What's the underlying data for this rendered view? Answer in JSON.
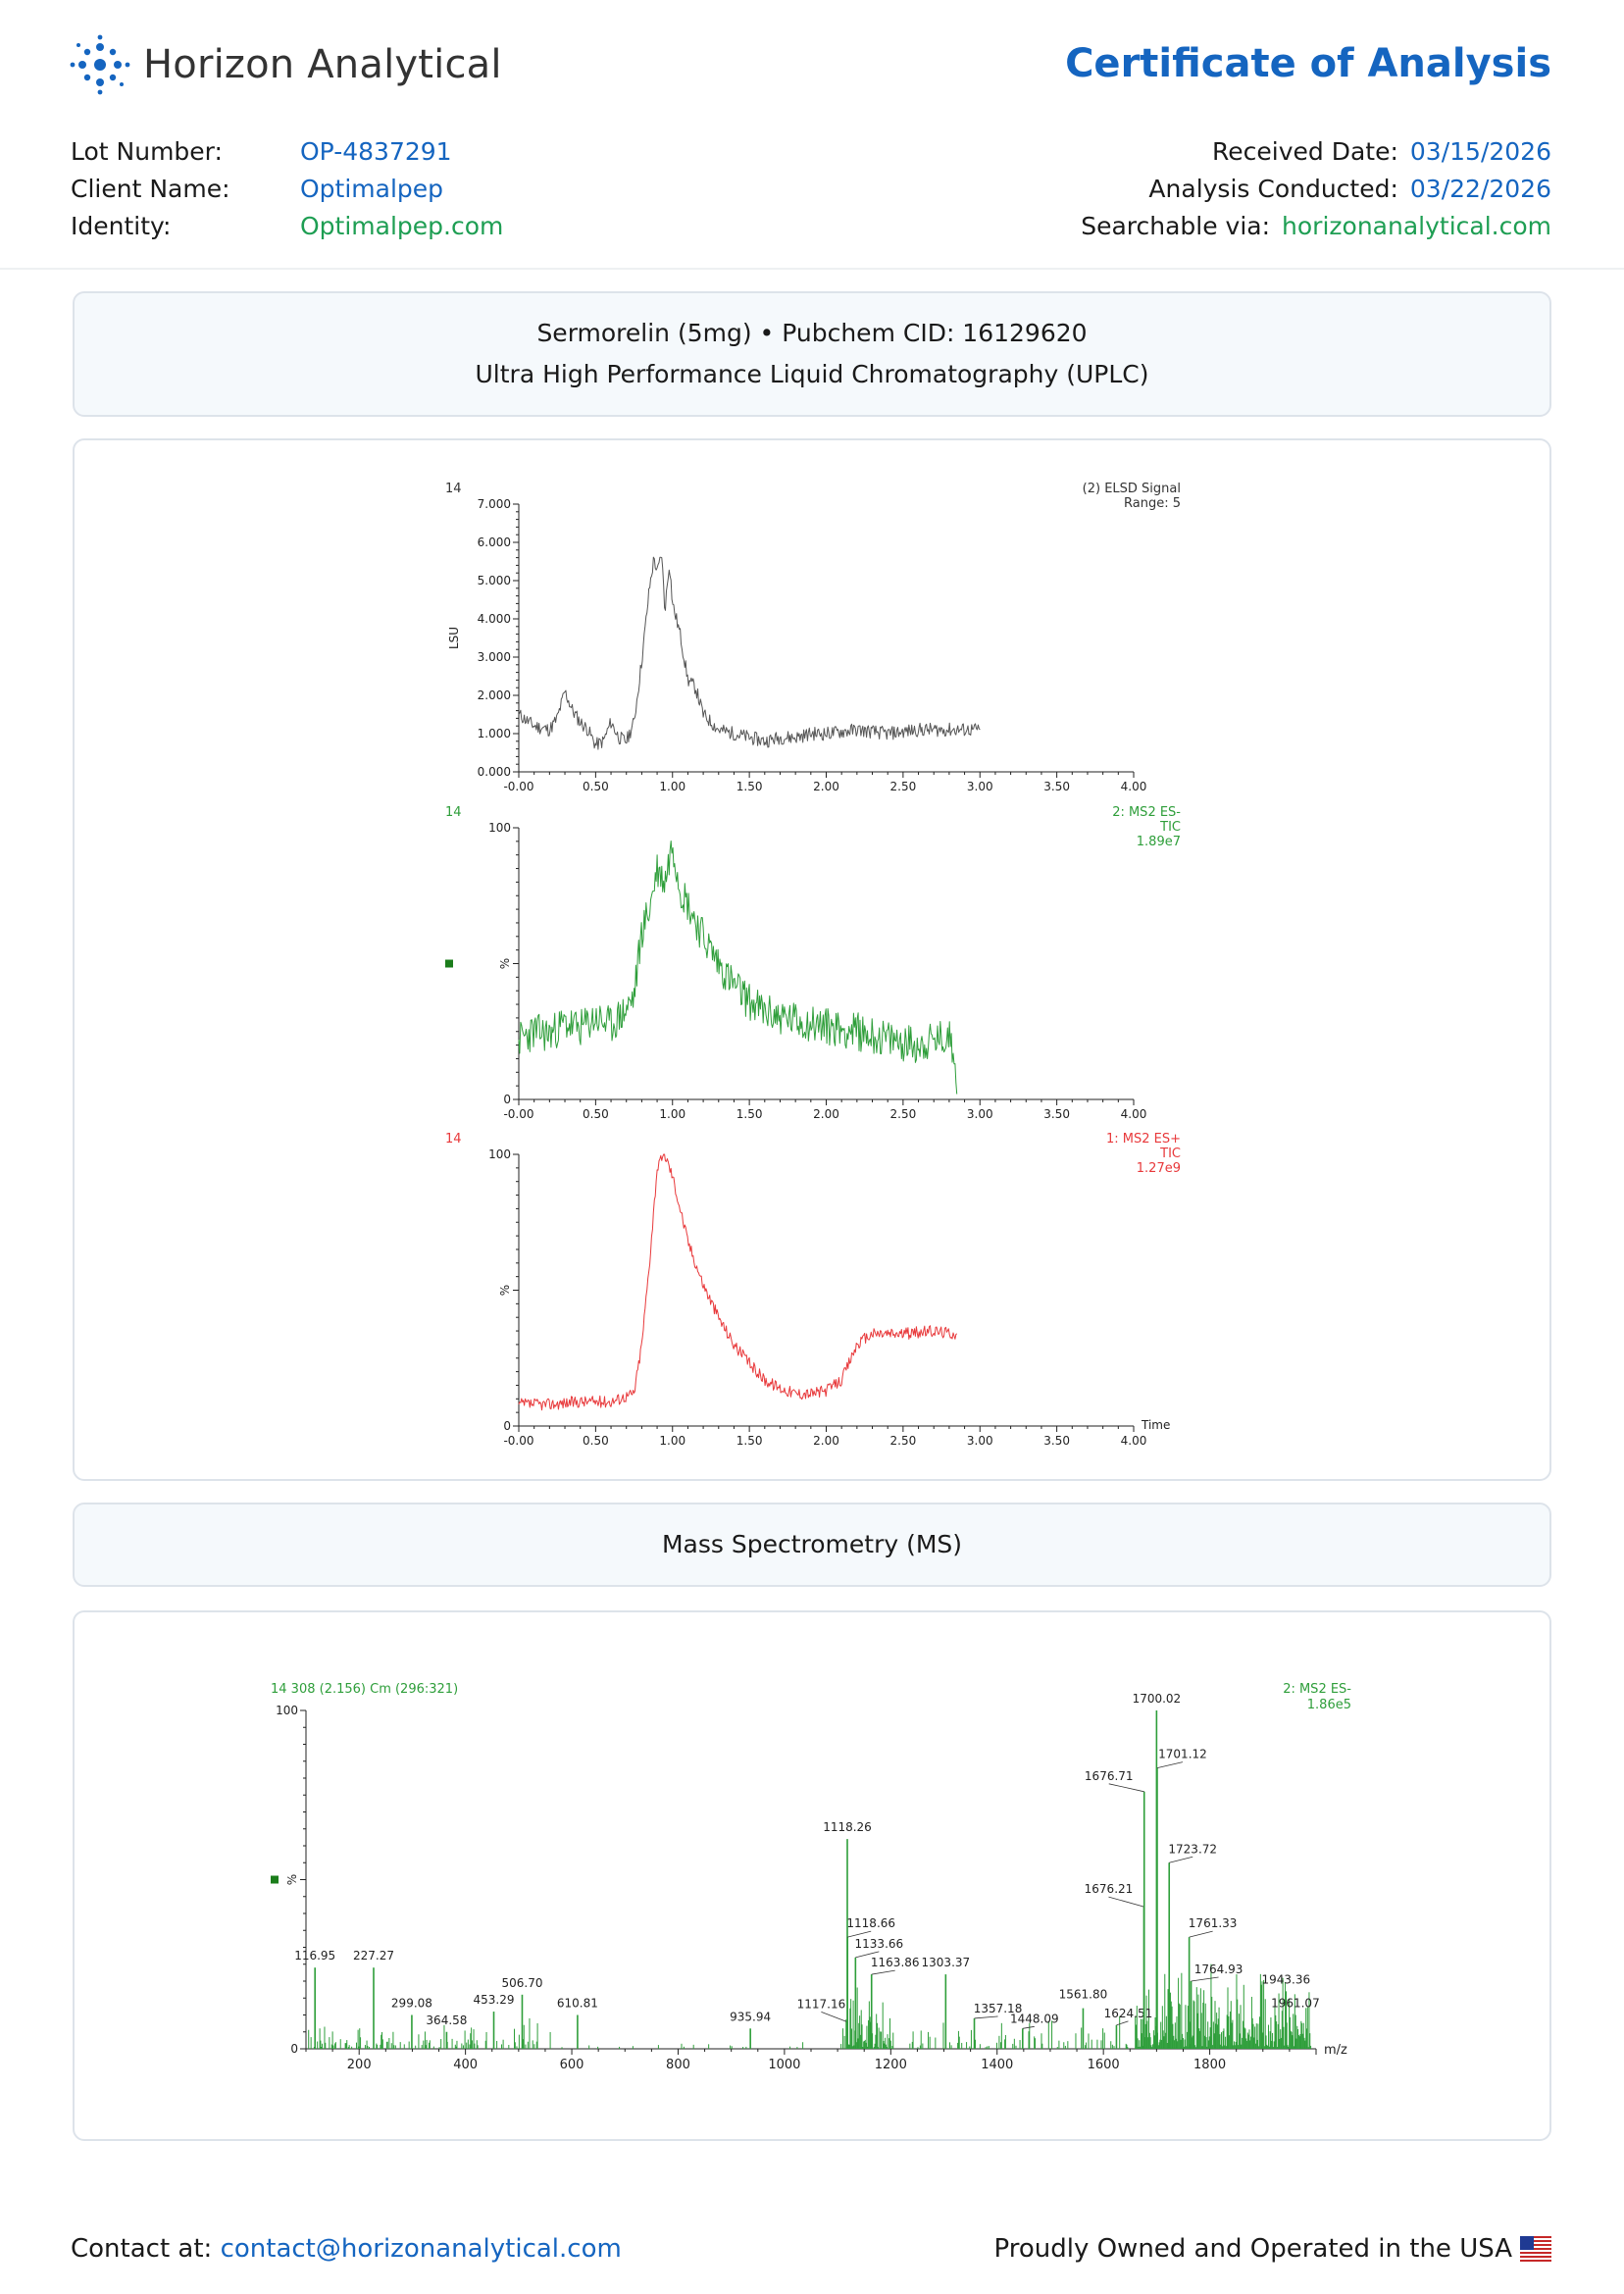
{
  "header": {
    "brand": "Horizon Analytical",
    "title": "Certificate of Analysis",
    "logo_icon": "dotted-sunburst-icon"
  },
  "meta": {
    "lot_number_label": "Lot Number:",
    "lot_number": "OP-4837291",
    "client_name_label": "Client Name:",
    "client_name": "Optimalpep",
    "identity_label": "Identity:",
    "identity": "Optimalpep.com",
    "received_date_label": "Received Date:",
    "received_date": "03/15/2026",
    "analysis_conducted_label": "Analysis Conducted:",
    "analysis_conducted": "03/22/2026",
    "searchable_label": "Searchable via:",
    "searchable": "horizonanalytical.com"
  },
  "section1": {
    "line1": "Sermorelin (5mg) • Pubchem CID: 16129620",
    "line2": "Ultra High Performance Liquid Chromatography (UPLC)"
  },
  "section2": {
    "title": "Mass Spectrometry (MS)"
  },
  "footer": {
    "contact_label": "Contact at:",
    "contact_email": "contact@horizonanalytical.com",
    "tagline": "Proudly Owned and Operated in the USA",
    "flag_icon": "us-flag-icon"
  },
  "colors": {
    "brand_blue": "#1565c0",
    "accent_green": "#1e9e53",
    "elsd_trace": "#555555",
    "ms_neg_trace": "#2e9e3a",
    "ms_pos_trace": "#e8393b"
  },
  "chart_data": [
    {
      "type": "line",
      "corner_label": "14",
      "legend": [
        "(2) ELSD Signal",
        "Range: 5"
      ],
      "ylabel": "LSU",
      "xlim": [
        0,
        4.0
      ],
      "ylim": [
        0,
        7.0
      ],
      "xticks": [
        "-0.00",
        "0.50",
        "1.00",
        "1.50",
        "2.00",
        "2.50",
        "3.00",
        "3.50",
        "4.00"
      ],
      "yticks": [
        "0.000",
        "1.000",
        "2.000",
        "3.000",
        "4.000",
        "5.000",
        "6.000",
        "7.000"
      ],
      "series": [
        {
          "x": [
            0.0,
            0.1,
            0.2,
            0.25,
            0.3,
            0.35,
            0.4,
            0.45,
            0.5,
            0.55,
            0.6,
            0.65,
            0.7,
            0.75,
            0.8,
            0.85,
            0.88,
            0.9,
            0.93,
            0.95,
            0.98,
            1.0,
            1.05,
            1.1,
            1.15,
            1.2,
            1.3,
            1.4,
            1.5,
            1.6,
            1.7,
            1.8,
            1.9,
            2.0,
            2.2,
            2.4,
            2.6,
            2.8,
            3.0
          ],
          "values": [
            1.5,
            1.2,
            1.1,
            1.4,
            2.1,
            1.6,
            1.3,
            1.1,
            0.7,
            0.8,
            1.3,
            0.9,
            0.8,
            1.3,
            2.9,
            4.8,
            5.6,
            5.2,
            5.7,
            4.2,
            5.5,
            4.4,
            3.6,
            2.4,
            2.2,
            1.5,
            1.1,
            1.0,
            0.9,
            0.8,
            0.9,
            0.9,
            1.0,
            1.0,
            1.1,
            1.0,
            1.1,
            1.1,
            1.1
          ]
        }
      ]
    },
    {
      "type": "line",
      "corner_label": "14",
      "legend": [
        "2: MS2 ES-",
        "TIC",
        "1.89e7"
      ],
      "ylabel": "%",
      "xlim": [
        0,
        4.0
      ],
      "ylim": [
        0,
        100
      ],
      "xticks": [
        "-0.00",
        "0.50",
        "1.00",
        "1.50",
        "2.00",
        "2.50",
        "3.00",
        "3.50",
        "4.00"
      ],
      "yticks": [
        "0",
        "100"
      ],
      "series": [
        {
          "x": [
            0.0,
            0.1,
            0.2,
            0.3,
            0.4,
            0.5,
            0.6,
            0.7,
            0.75,
            0.8,
            0.85,
            0.9,
            0.95,
            1.0,
            1.05,
            1.1,
            1.2,
            1.3,
            1.4,
            1.5,
            1.6,
            1.8,
            2.0,
            2.2,
            2.4,
            2.6,
            2.8,
            2.84,
            2.85
          ],
          "values": [
            22,
            25,
            24,
            28,
            26,
            30,
            27,
            33,
            38,
            62,
            70,
            85,
            80,
            95,
            78,
            72,
            60,
            50,
            42,
            36,
            32,
            29,
            27,
            25,
            22,
            20,
            23,
            18,
            2
          ]
        }
      ]
    },
    {
      "type": "line",
      "corner_label": "14",
      "legend": [
        "1: MS2 ES+",
        "TIC",
        "1.27e9"
      ],
      "ylabel": "%",
      "xlabel": "Time",
      "xlim": [
        0,
        4.0
      ],
      "ylim": [
        0,
        100
      ],
      "xticks": [
        "-0.00",
        "0.50",
        "1.00",
        "1.50",
        "2.00",
        "2.50",
        "3.00",
        "3.50",
        "4.00"
      ],
      "yticks": [
        "0",
        "100"
      ],
      "series": [
        {
          "x": [
            0.0,
            0.2,
            0.4,
            0.6,
            0.75,
            0.8,
            0.85,
            0.9,
            0.95,
            1.0,
            1.05,
            1.1,
            1.2,
            1.3,
            1.4,
            1.5,
            1.6,
            1.7,
            1.8,
            1.9,
            2.0,
            2.1,
            2.2,
            2.3,
            2.5,
            2.7,
            2.85
          ],
          "values": [
            8,
            8,
            9,
            9,
            12,
            30,
            60,
            95,
            100,
            92,
            80,
            68,
            52,
            40,
            30,
            23,
            17,
            14,
            12,
            12,
            13,
            17,
            30,
            34,
            34,
            35,
            34
          ]
        }
      ]
    },
    {
      "type": "bar",
      "title": "14 308 (2.156) Cm (296:321)",
      "legend": [
        "2: MS2 ES-",
        "1.86e5"
      ],
      "ylabel": "%",
      "xlabel": "m/z",
      "xlim": [
        100,
        2000
      ],
      "ylim": [
        0,
        100
      ],
      "xticks": [
        "200",
        "400",
        "600",
        "800",
        "1000",
        "1200",
        "1400",
        "1600",
        "1800"
      ],
      "yticks": [
        "0",
        "100"
      ],
      "peaks": [
        {
          "mz": 116.95,
          "label": "116.95",
          "intensity": 24
        },
        {
          "mz": 227.27,
          "label": "227.27",
          "intensity": 24
        },
        {
          "mz": 299.08,
          "label": "299.08",
          "intensity": 10
        },
        {
          "mz": 364.58,
          "label": "364.58",
          "intensity": 5
        },
        {
          "mz": 453.29,
          "label": "453.29",
          "intensity": 11
        },
        {
          "mz": 506.7,
          "label": "506.70",
          "intensity": 16
        },
        {
          "mz": 610.81,
          "label": "610.81",
          "intensity": 10
        },
        {
          "mz": 935.94,
          "label": "935.94",
          "intensity": 6
        },
        {
          "mz": 1117.16,
          "label": "1117.16",
          "intensity": 8
        },
        {
          "mz": 1118.26,
          "label": "1118.26",
          "intensity": 62
        },
        {
          "mz": 1118.66,
          "label": "1118.66",
          "intensity": 33
        },
        {
          "mz": 1133.66,
          "label": "1133.66",
          "intensity": 27
        },
        {
          "mz": 1163.86,
          "label": "1163.86",
          "intensity": 22
        },
        {
          "mz": 1303.37,
          "label": "1303.37",
          "intensity": 22
        },
        {
          "mz": 1357.18,
          "label": "1357.18",
          "intensity": 9
        },
        {
          "mz": 1448.09,
          "label": "1448.09",
          "intensity": 6
        },
        {
          "mz": 1561.8,
          "label": "1561.80",
          "intensity": 12
        },
        {
          "mz": 1624.51,
          "label": "1624.51",
          "intensity": 7
        },
        {
          "mz": 1676.21,
          "label": "1676.21",
          "intensity": 42
        },
        {
          "mz": 1676.71,
          "label": "1676.71",
          "intensity": 76
        },
        {
          "mz": 1700.02,
          "label": "1700.02",
          "intensity": 100
        },
        {
          "mz": 1701.12,
          "label": "1701.12",
          "intensity": 83
        },
        {
          "mz": 1723.72,
          "label": "1723.72",
          "intensity": 55
        },
        {
          "mz": 1761.33,
          "label": "1761.33",
          "intensity": 33
        },
        {
          "mz": 1764.93,
          "label": "1764.93",
          "intensity": 20
        },
        {
          "mz": 1943.36,
          "label": "1943.36",
          "intensity": 17
        },
        {
          "mz": 1961.07,
          "label": "1961.07",
          "intensity": 10
        }
      ]
    }
  ]
}
